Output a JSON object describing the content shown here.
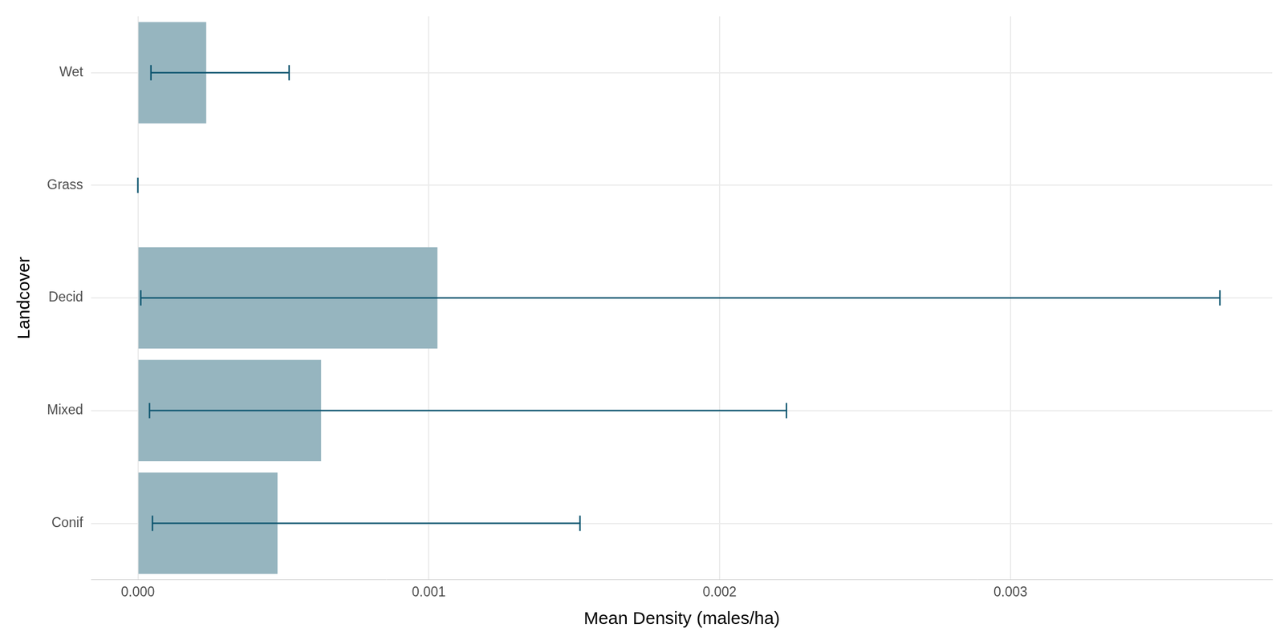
{
  "chart_data": {
    "type": "bar",
    "orientation": "horizontal",
    "x_label": "Mean Density (males/ha)",
    "y_label": "Landcover",
    "categories": [
      "Wet",
      "Grass",
      "Decid",
      "Mixed",
      "Conif"
    ],
    "values": [
      0.000235,
      0,
      0.00103,
      0.00063,
      0.00048
    ],
    "error_low": [
      4.5e-05,
      0,
      1e-05,
      4e-05,
      5e-05
    ],
    "error_high": [
      0.00052,
      0,
      0.00372,
      0.00223,
      0.00152
    ],
    "color": "#96b5bf",
    "xlim": [
      -0.00016,
      0.0039
    ],
    "xticks": [
      {
        "value": 0,
        "label": "0.000"
      },
      0.001,
      0.002,
      0.003
    ],
    "grid": true
  }
}
